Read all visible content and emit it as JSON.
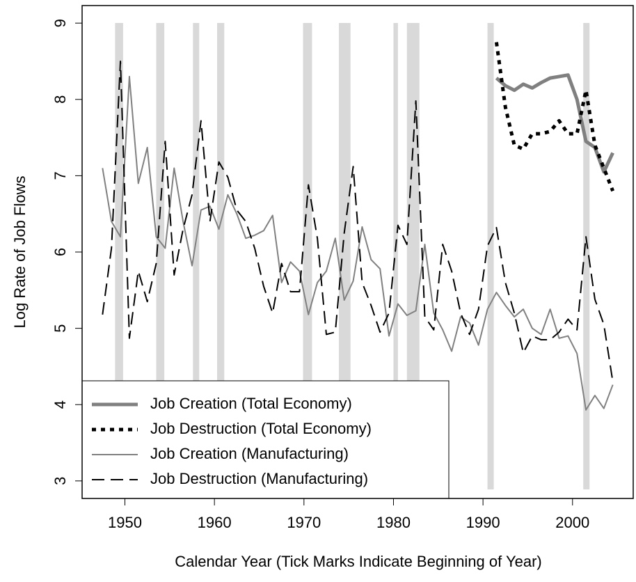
{
  "chart_data": {
    "type": "line",
    "xlabel": "Calendar Year (Tick Marks Indicate Beginning of Year)",
    "ylabel": "Log Rate of Job Flows",
    "x": [
      1947.5,
      1948.5,
      1949.5,
      1950.5,
      1951.5,
      1952.5,
      1953.5,
      1954.5,
      1955.5,
      1956.5,
      1957.5,
      1958.5,
      1959.5,
      1960.5,
      1961.5,
      1962.5,
      1963.5,
      1964.5,
      1965.5,
      1966.5,
      1967.5,
      1968.5,
      1969.5,
      1970.5,
      1971.5,
      1972.5,
      1973.5,
      1974.5,
      1975.5,
      1976.5,
      1977.5,
      1978.5,
      1979.5,
      1980.5,
      1981.5,
      1982.5,
      1983.5,
      1984.5,
      1985.5,
      1986.5,
      1987.5,
      1988.5,
      1989.5,
      1990.5,
      1991.5,
      1992.5,
      1993.5,
      1994.5,
      1995.5,
      1996.5,
      1997.5,
      1998.5,
      1999.5,
      2000.5,
      2001.5,
      2002.5,
      2003.5,
      2004.5
    ],
    "series": [
      {
        "name": "Job Creation (Total Economy)",
        "color": "#808080",
        "width": 5,
        "linestyle": "solid",
        "values": [
          null,
          null,
          null,
          null,
          null,
          null,
          null,
          null,
          null,
          null,
          null,
          null,
          null,
          null,
          null,
          null,
          null,
          null,
          null,
          null,
          null,
          null,
          null,
          null,
          null,
          null,
          null,
          null,
          null,
          null,
          null,
          null,
          null,
          null,
          null,
          null,
          null,
          null,
          null,
          null,
          null,
          null,
          null,
          null,
          8.28,
          8.18,
          8.12,
          8.2,
          8.15,
          8.22,
          8.28,
          8.3,
          8.32,
          8.0,
          7.45,
          7.37,
          7.05,
          7.3
        ]
      },
      {
        "name": "Job Destruction (Total Economy)",
        "color": "#000000",
        "width": 5,
        "linestyle": "dotted",
        "values": [
          null,
          null,
          null,
          null,
          null,
          null,
          null,
          null,
          null,
          null,
          null,
          null,
          null,
          null,
          null,
          null,
          null,
          null,
          null,
          null,
          null,
          null,
          null,
          null,
          null,
          null,
          null,
          null,
          null,
          null,
          null,
          null,
          null,
          null,
          null,
          null,
          null,
          null,
          null,
          null,
          null,
          null,
          null,
          null,
          8.75,
          7.9,
          7.4,
          7.35,
          7.55,
          7.55,
          7.58,
          7.72,
          7.55,
          7.55,
          8.12,
          7.4,
          7.1,
          6.8
        ]
      },
      {
        "name": "Job Creation (Manufacturing)",
        "color": "#808080",
        "width": 2,
        "linestyle": "solid",
        "values": [
          7.1,
          6.4,
          6.2,
          8.3,
          6.9,
          7.37,
          6.2,
          6.05,
          7.1,
          6.4,
          5.82,
          6.55,
          6.6,
          6.3,
          6.75,
          6.5,
          6.18,
          6.22,
          6.28,
          6.48,
          5.6,
          5.87,
          5.75,
          5.18,
          5.6,
          5.75,
          6.18,
          5.37,
          5.62,
          6.33,
          5.9,
          5.78,
          4.9,
          5.32,
          5.17,
          5.23,
          6.1,
          5.2,
          4.98,
          4.7,
          5.15,
          5.07,
          4.78,
          5.25,
          5.47,
          5.3,
          5.15,
          5.25,
          5.0,
          4.92,
          5.25,
          4.87,
          4.9,
          4.67,
          3.93,
          4.12,
          3.95,
          4.26
        ]
      },
      {
        "name": "Job Destruction (Manufacturing)",
        "color": "#000000",
        "width": 2,
        "linestyle": "dashed",
        "values": [
          5.18,
          6.05,
          8.5,
          4.87,
          5.75,
          5.35,
          5.85,
          7.45,
          5.7,
          6.3,
          6.75,
          7.72,
          6.4,
          7.18,
          6.98,
          6.55,
          6.4,
          6.05,
          5.55,
          5.2,
          5.85,
          5.48,
          5.48,
          6.88,
          6.18,
          4.92,
          4.95,
          6.25,
          7.12,
          5.6,
          5.3,
          4.95,
          5.2,
          6.35,
          6.1,
          7.98,
          5.15,
          4.98,
          6.1,
          5.75,
          5.2,
          4.92,
          5.25,
          6.08,
          6.32,
          5.6,
          5.2,
          4.68,
          4.9,
          4.85,
          4.85,
          4.95,
          5.12,
          4.98,
          6.2,
          5.38,
          5.05,
          4.3
        ]
      }
    ],
    "shaded_periods": [
      [
        1948.9,
        1949.8
      ],
      [
        1953.5,
        1954.4
      ],
      [
        1957.6,
        1958.3
      ],
      [
        1960.3,
        1961.1
      ],
      [
        1969.9,
        1970.9
      ],
      [
        1973.9,
        1975.2
      ],
      [
        1980.0,
        1980.5
      ],
      [
        1981.5,
        1982.9
      ],
      [
        1990.5,
        1991.2
      ],
      [
        2001.2,
        2001.9
      ]
    ],
    "shade_color": "#d9d9d9",
    "xlim": [
      1945.22,
      2006.78
    ],
    "xticks": [
      1950,
      1960,
      1970,
      1980,
      1990,
      2000
    ],
    "ylim": [
      2.77,
      9.23
    ],
    "yticks": [
      3,
      4,
      5,
      6,
      7,
      8,
      9
    ],
    "legend_position": "bottomleft"
  }
}
